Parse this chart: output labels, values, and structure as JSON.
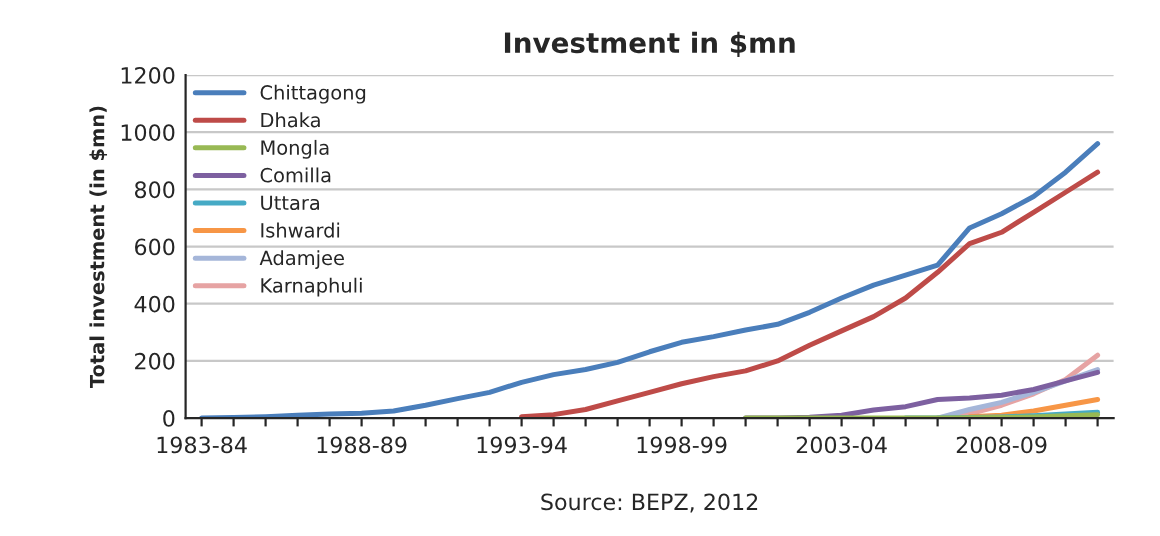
{
  "chart_data": {
    "type": "line",
    "title": "Investment in $mn",
    "ylabel": "Total investment (in $mn)",
    "categories": [
      "1983-84",
      null,
      null,
      null,
      null,
      "1988-89",
      null,
      null,
      null,
      null,
      "1993-94",
      null,
      null,
      null,
      null,
      "1998-99",
      null,
      null,
      null,
      null,
      "2003-04",
      null,
      null,
      null,
      null,
      "2008-09",
      null,
      null,
      null
    ],
    "series": [
      {
        "name": "Chittagong",
        "color": "#4a7ebb",
        "values": [
          0,
          2,
          5,
          10,
          14,
          17,
          25,
          45,
          68,
          90,
          125,
          152,
          170,
          195,
          232,
          265,
          285,
          308,
          328,
          370,
          420,
          465,
          500,
          535,
          665,
          715,
          775,
          860,
          960
        ]
      },
      {
        "name": "Dhaka",
        "color": "#be4b48",
        "values": [
          null,
          null,
          null,
          null,
          null,
          null,
          null,
          null,
          null,
          null,
          5,
          12,
          30,
          60,
          90,
          120,
          145,
          165,
          200,
          255,
          305,
          355,
          420,
          510,
          610,
          650,
          720,
          790,
          860
        ]
      },
      {
        "name": "Mongla",
        "color": "#98b954",
        "values": [
          null,
          null,
          null,
          null,
          null,
          null,
          null,
          null,
          null,
          null,
          null,
          null,
          null,
          null,
          null,
          null,
          null,
          0,
          0,
          0,
          0,
          0,
          0,
          0,
          1,
          2,
          4,
          8,
          12
        ]
      },
      {
        "name": "Comilla",
        "color": "#7d60a0",
        "values": [
          null,
          null,
          null,
          null,
          null,
          null,
          null,
          null,
          null,
          null,
          null,
          null,
          null,
          null,
          null,
          null,
          null,
          0,
          0,
          3,
          10,
          28,
          40,
          65,
          70,
          80,
          100,
          130,
          160
        ]
      },
      {
        "name": "Uttara",
        "color": "#46aac5",
        "values": [
          null,
          null,
          null,
          null,
          null,
          null,
          null,
          null,
          null,
          null,
          null,
          null,
          null,
          null,
          null,
          null,
          null,
          null,
          null,
          null,
          null,
          null,
          0,
          0,
          2,
          4,
          8,
          14,
          20
        ]
      },
      {
        "name": "Ishwardi",
        "color": "#f79646",
        "values": [
          null,
          null,
          null,
          null,
          null,
          null,
          null,
          null,
          null,
          null,
          null,
          null,
          null,
          null,
          null,
          null,
          null,
          null,
          null,
          null,
          null,
          null,
          null,
          null,
          5,
          10,
          25,
          45,
          65
        ]
      },
      {
        "name": "Adamjee",
        "color": "#a5b6d9",
        "values": [
          null,
          null,
          null,
          null,
          null,
          null,
          null,
          null,
          null,
          null,
          null,
          null,
          null,
          null,
          null,
          null,
          null,
          null,
          null,
          null,
          null,
          null,
          null,
          0,
          30,
          55,
          90,
          130,
          170
        ]
      },
      {
        "name": "Karnaphuli",
        "color": "#e6a3a3",
        "values": [
          null,
          null,
          null,
          null,
          null,
          null,
          null,
          null,
          null,
          null,
          null,
          null,
          null,
          null,
          null,
          null,
          null,
          null,
          null,
          null,
          null,
          null,
          null,
          0,
          15,
          45,
          85,
          135,
          220
        ]
      }
    ],
    "ylim": [
      0,
      1200
    ],
    "yticks": [
      0,
      200,
      400,
      600,
      800,
      1000,
      1200
    ],
    "grid": "y",
    "legend": "top left",
    "marker": "none",
    "line_style": "solid",
    "annotations": [
      "Source: BEPZ, 2012"
    ]
  }
}
